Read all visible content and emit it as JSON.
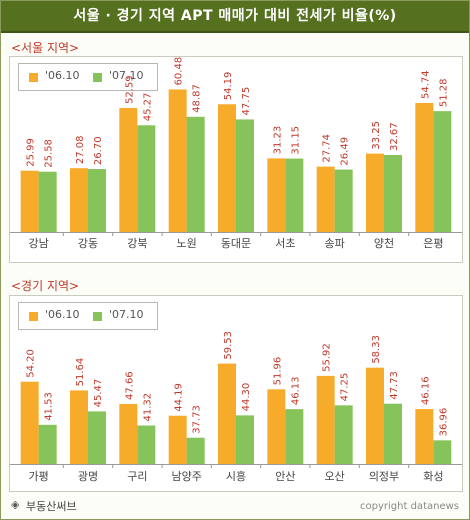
{
  "title": "서울 · 경기 지역 APT 매매가 대비 전세가 비율(%)",
  "footer": {
    "icon": "◈",
    "left": "부동산써브",
    "right": "copyright datanews"
  },
  "colors": {
    "series_06": "#f7ab2b",
    "series_07": "#86c35a",
    "value_label": "#c0392b",
    "title_bg": "#55701f"
  },
  "chart_data": [
    {
      "type": "bar",
      "section_label": "<서울 지역>",
      "categories": [
        "강남",
        "강동",
        "강북",
        "노원",
        "동대문",
        "서초",
        "송파",
        "양천",
        "은평"
      ],
      "series": [
        {
          "name": "'06.10",
          "values": [
            25.99,
            27.08,
            52.59,
            60.48,
            54.19,
            31.23,
            27.74,
            33.25,
            54.74
          ],
          "labels": [
            "25.99",
            "27.08",
            "52.59",
            "60.48",
            "54.19",
            "31.23",
            "27.74",
            "33.25",
            "54.74"
          ]
        },
        {
          "name": "'07.10",
          "values": [
            25.58,
            26.7,
            45.27,
            48.87,
            47.75,
            31.15,
            26.49,
            32.67,
            51.28
          ],
          "labels": [
            "25.58",
            "26.70",
            "45.27",
            "48.87",
            "47.75",
            "31.15",
            "26.49",
            "32.67",
            "51.28"
          ]
        }
      ],
      "xlabel": "",
      "ylabel": "",
      "ylim": [
        0,
        70
      ],
      "grid": false,
      "legend": "top-left"
    },
    {
      "type": "bar",
      "section_label": "<경기 지역>",
      "categories": [
        "가평",
        "광명",
        "구리",
        "남양주",
        "시흥",
        "안산",
        "오산",
        "의정부",
        "화성"
      ],
      "series": [
        {
          "name": "'06.10",
          "values": [
            54.2,
            51.64,
            47.66,
            44.19,
            59.53,
            51.96,
            55.92,
            58.33,
            46.16
          ],
          "labels": [
            "54.20",
            "51.64",
            "47.66",
            "44.19",
            "59.53",
            "51.96",
            "55.92",
            "58.33",
            "46.16"
          ]
        },
        {
          "name": "'07.10",
          "values": [
            41.53,
            45.47,
            41.32,
            37.73,
            44.3,
            46.13,
            47.25,
            47.73,
            36.96
          ],
          "labels": [
            "41.53",
            "45.47",
            "41.32",
            "37.73",
            "44.30",
            "46.13",
            "47.25",
            "47.73",
            "36.96"
          ]
        }
      ],
      "xlabel": "",
      "ylabel": "",
      "ylim": [
        30,
        70
      ],
      "grid": false,
      "legend": "top-left"
    }
  ]
}
